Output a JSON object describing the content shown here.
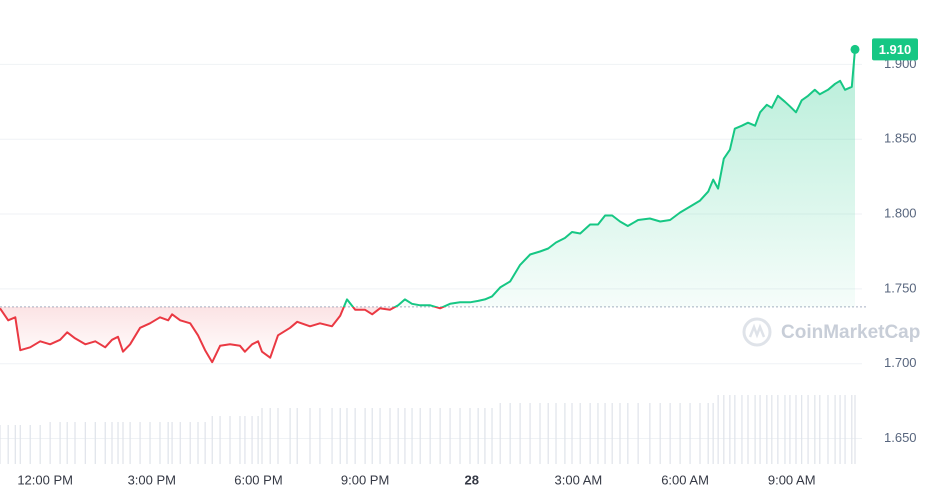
{
  "chart_data": {
    "type": "line",
    "x": [
      -1.27,
      -1.04,
      -0.84,
      -0.7,
      -0.42,
      -0.14,
      0.14,
      0.42,
      0.62,
      0.84,
      1.13,
      1.41,
      1.69,
      1.88,
      2.05,
      2.19,
      2.39,
      2.67,
      2.95,
      3.23,
      3.46,
      3.57,
      3.8,
      4.08,
      4.3,
      4.5,
      4.7,
      4.92,
      5.2,
      5.48,
      5.62,
      5.82,
      5.99,
      6.1,
      6.33,
      6.55,
      6.89,
      7.09,
      7.45,
      7.73,
      8.07,
      8.3,
      8.49,
      8.72,
      9.0,
      9.2,
      9.42,
      9.7,
      9.93,
      10.12,
      10.32,
      10.55,
      10.83,
      11.11,
      11.39,
      11.67,
      11.95,
      12.18,
      12.37,
      12.57,
      12.8,
      13.08,
      13.36,
      13.64,
      13.92,
      14.15,
      14.37,
      14.62,
      14.82,
      15.05,
      15.33,
      15.55,
      15.75,
      15.95,
      16.17,
      16.39,
      16.68,
      17.01,
      17.3,
      17.58,
      17.86,
      18.14,
      18.42,
      18.65,
      18.79,
      18.93,
      19.09,
      19.26,
      19.4,
      19.6,
      19.77,
      19.97,
      20.11,
      20.3,
      20.44,
      20.61,
      20.81,
      20.95,
      21.12,
      21.28,
      21.46,
      21.65,
      21.79,
      22.02,
      22.22,
      22.36,
      22.5,
      22.69,
      22.78
    ],
    "values": [
      1.737,
      1.729,
      1.731,
      1.709,
      1.711,
      1.715,
      1.713,
      1.716,
      1.721,
      1.717,
      1.713,
      1.715,
      1.711,
      1.716,
      1.718,
      1.708,
      1.713,
      1.724,
      1.727,
      1.731,
      1.729,
      1.733,
      1.729,
      1.727,
      1.719,
      1.709,
      1.701,
      1.712,
      1.713,
      1.712,
      1.708,
      1.713,
      1.715,
      1.708,
      1.704,
      1.719,
      1.724,
      1.728,
      1.725,
      1.727,
      1.725,
      1.732,
      1.743,
      1.736,
      1.736,
      1.733,
      1.737,
      1.736,
      1.739,
      1.743,
      1.74,
      1.739,
      1.739,
      1.737,
      1.74,
      1.741,
      1.741,
      1.742,
      1.743,
      1.745,
      1.751,
      1.755,
      1.766,
      1.773,
      1.775,
      1.777,
      1.781,
      1.784,
      1.788,
      1.787,
      1.793,
      1.793,
      1.799,
      1.799,
      1.795,
      1.792,
      1.796,
      1.797,
      1.795,
      1.796,
      1.801,
      1.805,
      1.809,
      1.815,
      1.823,
      1.817,
      1.837,
      1.843,
      1.857,
      1.859,
      1.861,
      1.859,
      1.868,
      1.873,
      1.871,
      1.879,
      1.875,
      1.872,
      1.868,
      1.876,
      1.879,
      1.883,
      1.88,
      1.883,
      1.887,
      1.889,
      1.883,
      1.885,
      1.91
    ],
    "volume": [
      39,
      39,
      39,
      39,
      39,
      39,
      42,
      42,
      42,
      42,
      42,
      42,
      42,
      42,
      42,
      42,
      42,
      42,
      42,
      42,
      42,
      42,
      42,
      42,
      42,
      42,
      48,
      48,
      48,
      48,
      48,
      48,
      48,
      56,
      56,
      56,
      56,
      56,
      56,
      56,
      56,
      56,
      56,
      56,
      56,
      56,
      56,
      56,
      56,
      56,
      56,
      56,
      56,
      56,
      56,
      56,
      56,
      56,
      56,
      56,
      61,
      61,
      61,
      61,
      61,
      61,
      61,
      61,
      61,
      61,
      61,
      61,
      61,
      61,
      61,
      61,
      61,
      61,
      61,
      61,
      61,
      61,
      61,
      61,
      61,
      69,
      69,
      69,
      69,
      69,
      69,
      69,
      69,
      69,
      69,
      69,
      69,
      69,
      69,
      69,
      69,
      69,
      69,
      69,
      69,
      69,
      69,
      69,
      69
    ],
    "volume_ylim": [
      0,
      100
    ],
    "baseline": 1.738,
    "up_color": "#16c784",
    "down_color": "#ea3943",
    "last_label": "1.910",
    "watermark": "CoinMarketCap",
    "xlim": [
      -1.27,
      22.78
    ],
    "xticks": [
      {
        "value": 0,
        "label": "12:00 PM"
      },
      {
        "value": 3,
        "label": "3:00 PM"
      },
      {
        "value": 6,
        "label": "6:00 PM"
      },
      {
        "value": 9,
        "label": "9:00 PM"
      },
      {
        "value": 12,
        "label": "28"
      },
      {
        "value": 15,
        "label": "3:00 AM"
      },
      {
        "value": 18,
        "label": "6:00 AM"
      },
      {
        "value": 21,
        "label": "9:00 AM"
      }
    ],
    "ylim": [
      1.633,
      1.943
    ],
    "yticks": [
      {
        "value": 1.65,
        "label": "1.650"
      },
      {
        "value": 1.7,
        "label": "1.700"
      },
      {
        "value": 1.75,
        "label": "1.750"
      },
      {
        "value": 1.8,
        "label": "1.800"
      },
      {
        "value": 1.85,
        "label": "1.850"
      },
      {
        "value": 1.9,
        "label": "1.900"
      }
    ],
    "grid": true
  }
}
